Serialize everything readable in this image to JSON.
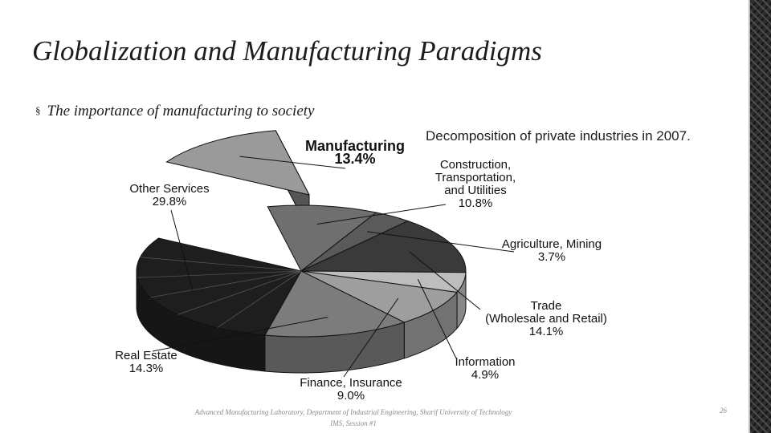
{
  "slide": {
    "title": "Globalization and Manufacturing Paradigms",
    "bullet": "The importance of manufacturing to society",
    "bullet_marker": "§",
    "caption": "Decomposition of private industries in 2007.",
    "footer_line1": "Advanced Manufacturing Laboratory, Department of Industrial Engineering, Sharif University of Technology",
    "footer_line2": "IMS, Session #1",
    "page_number": "26"
  },
  "chart_data": {
    "type": "pie",
    "title": "",
    "slices": [
      {
        "name": "Manufacturing",
        "value": 13.4,
        "value_label": "13.4%",
        "exploded": true,
        "bold": true,
        "color": "#9a9a9a"
      },
      {
        "name": "Construction, Transportation, and Utilities",
        "label_lines": [
          "Construction,",
          "Transportation,",
          "and Utilities"
        ],
        "value": 10.8,
        "value_label": "10.8%",
        "color": "#6f6f6f"
      },
      {
        "name": "Agriculture, Mining",
        "value": 3.7,
        "value_label": "3.7%",
        "color": "#5a5a5a"
      },
      {
        "name": "Trade (Wholesale and Retail)",
        "label_lines": [
          "Trade",
          "(Wholesale and Retail)"
        ],
        "value": 14.1,
        "value_label": "14.1%",
        "color": "#3a3a3a"
      },
      {
        "name": "Information",
        "value": 4.9,
        "value_label": "4.9%",
        "color": "#bdbdbd"
      },
      {
        "name": "Finance, Insurance",
        "value": 9.0,
        "value_label": "9.0%",
        "color": "#9e9e9e"
      },
      {
        "name": "Real Estate",
        "value": 14.3,
        "value_label": "14.3%",
        "color": "#7c7c7c"
      },
      {
        "name": "Other Services",
        "value": 29.8,
        "value_label": "29.8%",
        "color": "#1e1e1e"
      }
    ]
  }
}
